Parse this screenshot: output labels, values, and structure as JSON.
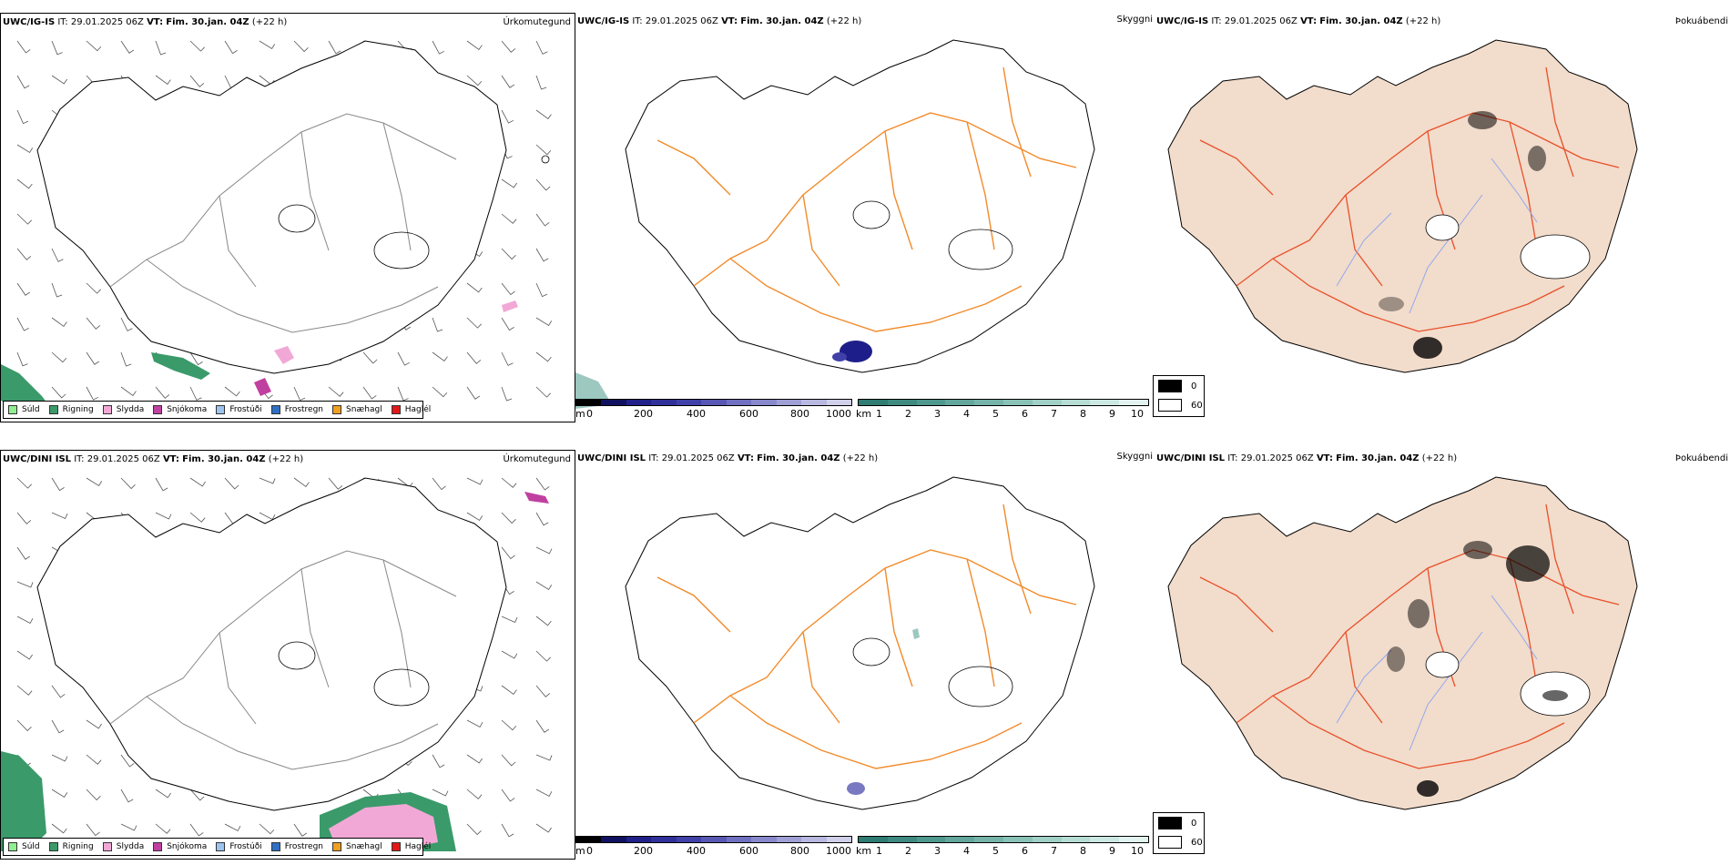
{
  "rows": [
    {
      "model": "UWC/IG-IS",
      "it_label": "IT:",
      "it_value": "29.01.2025 06Z",
      "vt_label": "VT:",
      "vt_value": "Fim. 30.jan. 04Z",
      "lead": "(+22 h)"
    },
    {
      "model": "UWC/DINI ISL",
      "it_label": "IT:",
      "it_value": "29.01.2025 06Z",
      "vt_label": "VT:",
      "vt_value": "Fim. 30.jan. 04Z",
      "lead": "(+22 h)"
    }
  ],
  "panel_titles": {
    "precip_type": "Úrkomutegund",
    "visibility": "Skyggni",
    "fog": "Þokuábendi"
  },
  "precip_legend": [
    {
      "label": "Súld",
      "color": "#90ee90"
    },
    {
      "label": "Rigning",
      "color": "#3a9a6a"
    },
    {
      "label": "Slydda",
      "color": "#f2a8d6"
    },
    {
      "label": "Snjókoma",
      "color": "#c040a0"
    },
    {
      "label": "Frostúði",
      "color": "#9cc4ee"
    },
    {
      "label": "Frostregn",
      "color": "#2f6fc4"
    },
    {
      "label": "Snæhagl",
      "color": "#f0a020"
    },
    {
      "label": "Haglél",
      "color": "#e01818"
    }
  ],
  "height_colorbar": {
    "unit": "m",
    "ticks": [
      "0",
      "200",
      "400",
      "600",
      "800",
      "1000"
    ],
    "colors": [
      "#000000",
      "#101060",
      "#202088",
      "#30309a",
      "#4040a8",
      "#5858b4",
      "#7070c0",
      "#8888cc",
      "#a0a0d6",
      "#b8b8e0",
      "#d0d0ea"
    ]
  },
  "visibility_colorbar": {
    "unit": "km",
    "ticks": [
      "1",
      "2",
      "3",
      "4",
      "5",
      "6",
      "7",
      "8",
      "9",
      "10"
    ],
    "colors": [
      "#2e7c72",
      "#3e8a80",
      "#4f988e",
      "#62a69c",
      "#76b4aa",
      "#8ac2b8",
      "#a0d0c6",
      "#b6ddd4",
      "#cce8e2",
      "#e2f2ee"
    ]
  },
  "fog_legend": [
    {
      "label": "0",
      "color": "#000000"
    },
    {
      "label": "60",
      "color": "#ffffff"
    }
  ],
  "colors": {
    "road": "#f28a2a",
    "fog_land": "#f2dccb",
    "fog_road": "#e8502a",
    "river": "#8fa8f0",
    "coast": "#000000"
  }
}
